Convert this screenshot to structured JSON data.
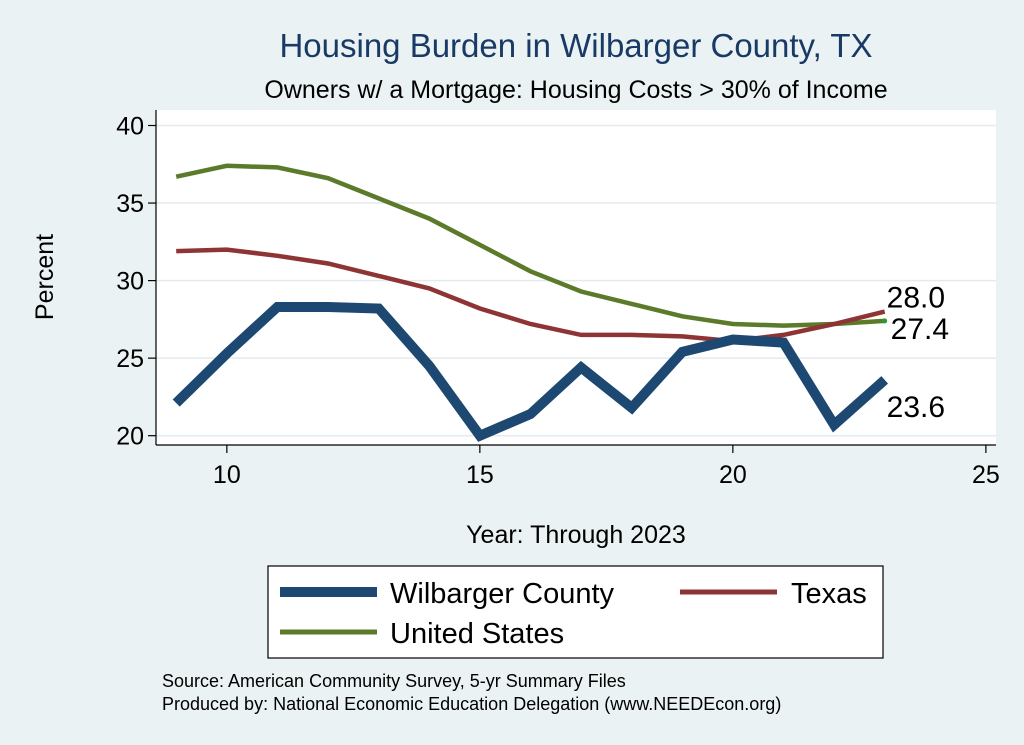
{
  "chart_data": {
    "type": "line",
    "title": "Housing Burden in Wilbarger County, TX",
    "subtitle": "Owners w/ a Mortgage: Housing Costs > 30% of Income",
    "xlabel": "Year: Through 2023",
    "ylabel": "Percent",
    "xlim": [
      8.6,
      25.2
    ],
    "ylim": [
      19.4,
      41.0
    ],
    "xticks": [
      10,
      15,
      20,
      25
    ],
    "yticks": [
      20,
      25,
      30,
      35,
      40
    ],
    "grid": true,
    "legend_position": "bottom",
    "series": [
      {
        "name": "Wilbarger County",
        "color": "#1c4872",
        "x": [
          9,
          10,
          11,
          12,
          13,
          14,
          15,
          16,
          17,
          18,
          19,
          20,
          21,
          22,
          23
        ],
        "values": [
          22.1,
          25.3,
          28.3,
          28.3,
          28.2,
          24.5,
          20.0,
          21.4,
          24.4,
          21.8,
          25.4,
          26.2,
          26.0,
          20.7,
          23.6
        ],
        "end_label": "23.6"
      },
      {
        "name": "Texas",
        "color": "#8f3434",
        "x": [
          9,
          10,
          11,
          12,
          13,
          14,
          15,
          16,
          17,
          18,
          19,
          20,
          21,
          22,
          23
        ],
        "values": [
          31.9,
          32.0,
          31.6,
          31.1,
          30.3,
          29.5,
          28.2,
          27.2,
          26.5,
          26.5,
          26.4,
          26.1,
          26.5,
          27.2,
          28.0
        ],
        "end_label": "28.0"
      },
      {
        "name": "United States",
        "color": "#5b7a2a",
        "x": [
          9,
          10,
          11,
          12,
          13,
          14,
          15,
          16,
          17,
          18,
          19,
          20,
          21,
          22,
          23
        ],
        "values": [
          36.7,
          37.4,
          37.3,
          36.6,
          35.3,
          34.0,
          32.3,
          30.6,
          29.3,
          28.5,
          27.7,
          27.2,
          27.1,
          27.2,
          27.4
        ],
        "end_label": "27.4"
      }
    ]
  },
  "legend": {
    "items": [
      "Wilbarger County",
      "Texas",
      "United States"
    ]
  },
  "notes": {
    "source": "Source: American Community Survey, 5-yr Summary Files",
    "producer": "Produced by: National Economic Education Delegation (www.NEEDEcon.org)"
  }
}
